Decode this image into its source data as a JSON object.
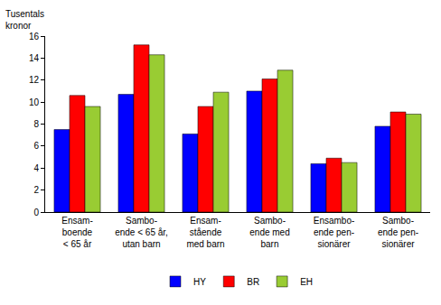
{
  "chart_data": {
    "type": "bar",
    "ylabel": "Tusentals\nkronor",
    "categories": [
      "Ensam-\nboende\n< 65 år",
      "Sambo-\nende < 65 år,\nutan barn",
      "Ensam-\nstående\nmed barn",
      "Sambo-\nende med\nbarn",
      "Ensambo-\nende pen-\nsionärer",
      "Sambo-\nende pen-\nsionärer"
    ],
    "series": [
      {
        "name": "HY",
        "color": "#0000ff",
        "values": [
          7.5,
          10.7,
          7.1,
          11.0,
          4.4,
          7.8
        ]
      },
      {
        "name": "BR",
        "color": "#ff0000",
        "values": [
          10.6,
          15.2,
          9.6,
          12.1,
          4.9,
          9.1
        ]
      },
      {
        "name": "EH",
        "color": "#99cc33",
        "values": [
          9.6,
          14.3,
          10.9,
          12.9,
          4.5,
          8.9
        ]
      }
    ],
    "ylim": [
      0,
      16
    ],
    "yticks": [
      0,
      2,
      4,
      6,
      8,
      10,
      12,
      14,
      16
    ],
    "grid": false,
    "legend": "bottom"
  }
}
